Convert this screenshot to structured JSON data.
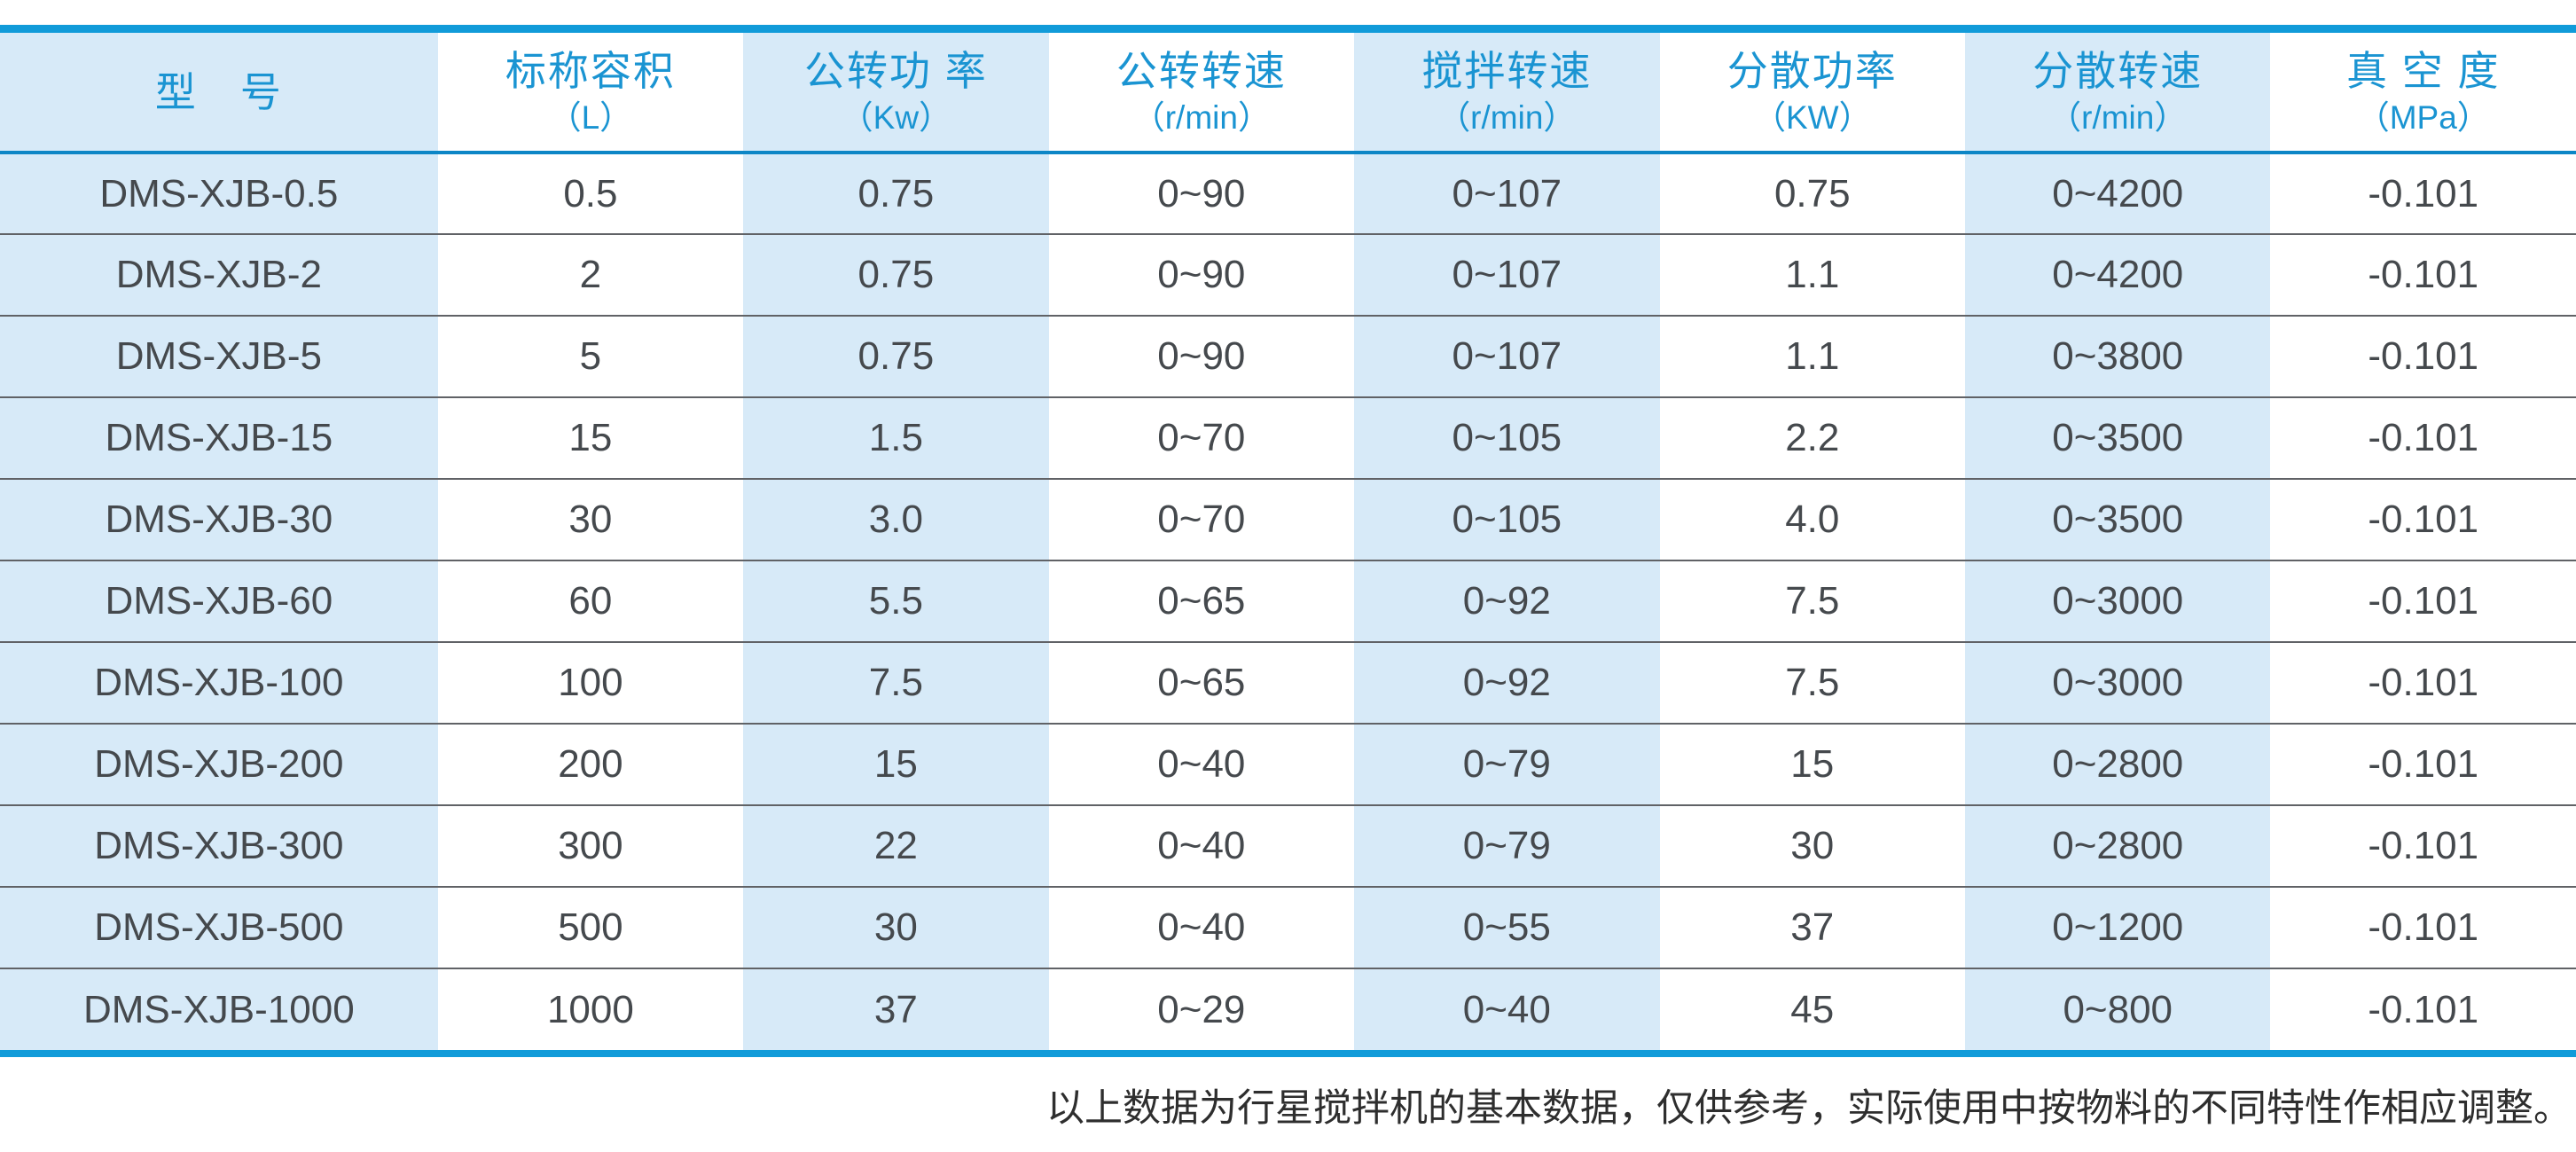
{
  "colors": {
    "accent_blue_line": "#119bd9",
    "header_underline_blue": "#0d86c6",
    "header_text_blue": "#1a94d2",
    "cell_shade_blue": "#d7eaf8",
    "body_text": "#45494d",
    "row_separator": "#606266"
  },
  "table": {
    "columns": [
      {
        "id": "model",
        "label": "型　号",
        "unit": ""
      },
      {
        "id": "nominal-volume",
        "label": "标称容积",
        "unit": "（L）"
      },
      {
        "id": "revolution-power",
        "label": "公转功 率",
        "unit": "（Kw）"
      },
      {
        "id": "revolution-speed",
        "label": "公转转速",
        "unit": "（r/min）"
      },
      {
        "id": "stir-speed",
        "label": "搅拌转速",
        "unit": "（r/min）"
      },
      {
        "id": "disperse-power",
        "label": "分散功率",
        "unit": "（KW）"
      },
      {
        "id": "disperse-speed",
        "label": "分散转速",
        "unit": "（r/min）"
      },
      {
        "id": "vacuum-degree",
        "label": "真 空 度",
        "unit": "（MPa）"
      }
    ],
    "rows": [
      [
        "DMS-XJB-0.5",
        "0.5",
        "0.75",
        "0~90",
        "0~107",
        "0.75",
        "0~4200",
        "-0.101"
      ],
      [
        "DMS-XJB-2",
        "2",
        "0.75",
        "0~90",
        "0~107",
        "1.1",
        "0~4200",
        "-0.101"
      ],
      [
        "DMS-XJB-5",
        "5",
        "0.75",
        "0~90",
        "0~107",
        "1.1",
        "0~3800",
        "-0.101"
      ],
      [
        "DMS-XJB-15",
        "15",
        "1.5",
        "0~70",
        "0~105",
        "2.2",
        "0~3500",
        "-0.101"
      ],
      [
        "DMS-XJB-30",
        "30",
        "3.0",
        "0~70",
        "0~105",
        "4.0",
        "0~3500",
        "-0.101"
      ],
      [
        "DMS-XJB-60",
        "60",
        "5.5",
        "0~65",
        "0~92",
        "7.5",
        "0~3000",
        "-0.101"
      ],
      [
        "DMS-XJB-100",
        "100",
        "7.5",
        "0~65",
        "0~92",
        "7.5",
        "0~3000",
        "-0.101"
      ],
      [
        "DMS-XJB-200",
        "200",
        "15",
        "0~40",
        "0~79",
        "15",
        "0~2800",
        "-0.101"
      ],
      [
        "DMS-XJB-300",
        "300",
        "22",
        "0~40",
        "0~79",
        "30",
        "0~2800",
        "-0.101"
      ],
      [
        "DMS-XJB-500",
        "500",
        "30",
        "0~40",
        "0~55",
        "37",
        "0~1200",
        "-0.101"
      ],
      [
        "DMS-XJB-1000",
        "1000",
        "37",
        "0~29",
        "0~40",
        "45",
        "0~800",
        "-0.101"
      ]
    ]
  },
  "footer": {
    "note": "以上数据为行星搅拌机的基本数据，仅供参考，实际使用中按物料的不同特性作相应调整。"
  },
  "chart_data": {
    "type": "table",
    "title": "行星搅拌机基本数据",
    "columns": [
      "型号",
      "标称容积（L）",
      "公转功率（Kw）",
      "公转转速（r/min）",
      "搅拌转速（r/min）",
      "分散功率（KW）",
      "分散转速（r/min）",
      "真空度（MPa）"
    ],
    "rows": [
      [
        "DMS-XJB-0.5",
        "0.5",
        "0.75",
        "0~90",
        "0~107",
        "0.75",
        "0~4200",
        "-0.101"
      ],
      [
        "DMS-XJB-2",
        "2",
        "0.75",
        "0~90",
        "0~107",
        "1.1",
        "0~4200",
        "-0.101"
      ],
      [
        "DMS-XJB-5",
        "5",
        "0.75",
        "0~90",
        "0~107",
        "1.1",
        "0~3800",
        "-0.101"
      ],
      [
        "DMS-XJB-15",
        "15",
        "1.5",
        "0~70",
        "0~105",
        "2.2",
        "0~3500",
        "-0.101"
      ],
      [
        "DMS-XJB-30",
        "30",
        "3.0",
        "0~70",
        "0~105",
        "4.0",
        "0~3500",
        "-0.101"
      ],
      [
        "DMS-XJB-60",
        "60",
        "5.5",
        "0~65",
        "0~92",
        "7.5",
        "0~3000",
        "-0.101"
      ],
      [
        "DMS-XJB-100",
        "100",
        "7.5",
        "0~65",
        "0~92",
        "7.5",
        "0~3000",
        "-0.101"
      ],
      [
        "DMS-XJB-200",
        "200",
        "15",
        "0~40",
        "0~79",
        "15",
        "0~2800",
        "-0.101"
      ],
      [
        "DMS-XJB-300",
        "300",
        "22",
        "0~40",
        "0~79",
        "30",
        "0~2800",
        "-0.101"
      ],
      [
        "DMS-XJB-500",
        "500",
        "30",
        "0~40",
        "0~55",
        "37",
        "0~1200",
        "-0.101"
      ],
      [
        "DMS-XJB-1000",
        "1000",
        "37",
        "0~29",
        "0~40",
        "45",
        "0~800",
        "-0.101"
      ]
    ]
  }
}
